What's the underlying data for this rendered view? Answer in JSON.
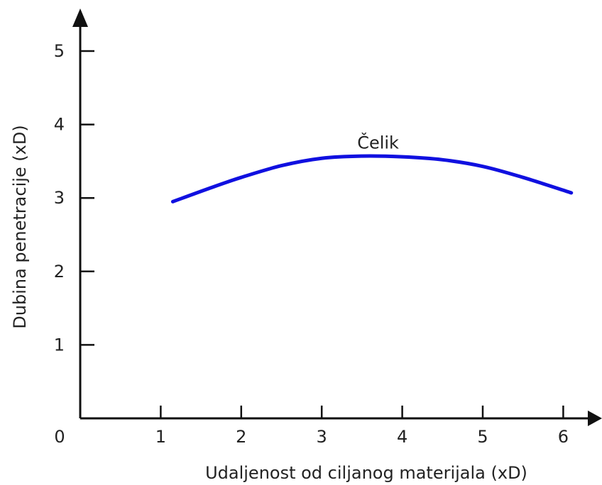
{
  "chart_data": {
    "type": "line",
    "title": "",
    "xlabel": "Udaljenost od ciljanog materijala (xD)",
    "ylabel": "Dubina penetracije  (xD)",
    "origin_label": "0",
    "xlim": [
      0,
      6.6
    ],
    "ylim": [
      0,
      5.4
    ],
    "x_ticks": [
      "1",
      "2",
      "3",
      "4",
      "5",
      "6"
    ],
    "y_ticks": [
      "1",
      "2",
      "3",
      "4",
      "5"
    ],
    "grid": false,
    "legend": "none",
    "series": [
      {
        "name": "Čelik",
        "color": "#1010e0",
        "x": [
          1.15,
          1.6,
          2.0,
          2.5,
          3.0,
          3.5,
          4.0,
          4.5,
          5.0,
          5.5,
          6.1
        ],
        "y": [
          2.95,
          3.13,
          3.28,
          3.44,
          3.54,
          3.57,
          3.56,
          3.52,
          3.43,
          3.28,
          3.07
        ]
      }
    ],
    "annotations": [
      {
        "text": "Čelik",
        "x": 3.7,
        "y": 3.75
      }
    ]
  }
}
